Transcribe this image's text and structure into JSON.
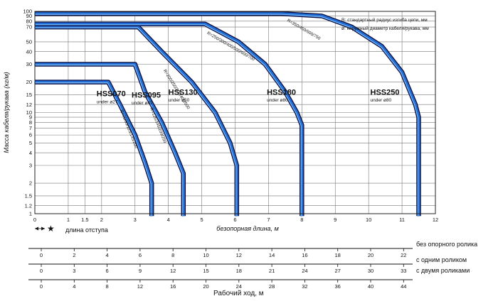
{
  "chart_data": {
    "type": "line",
    "xlabel": "безопорная длина, м",
    "ylabel": "Масса кабеля/рукава (кг/м)",
    "x_scale": "linear",
    "y_scale": "log",
    "xlim": [
      0,
      12
    ],
    "ylim": [
      1,
      100
    ],
    "x_ticks": [
      "0",
      "1",
      "1.5",
      "2",
      "3",
      "4",
      "5",
      "6",
      "7",
      "8",
      "9",
      "10",
      "11",
      "12"
    ],
    "x_tick_values": [
      0,
      1,
      1.5,
      2,
      3,
      4,
      5,
      6,
      7,
      8,
      9,
      10,
      11,
      12
    ],
    "y_ticks": [
      "1",
      "1.2",
      "1.5",
      "2",
      "3",
      "4",
      "5",
      "6",
      "7",
      "8",
      "9",
      "10",
      "12",
      "15",
      "20",
      "30",
      "40",
      "50",
      "70",
      "80",
      "90",
      "100"
    ],
    "y_tick_values": [
      1,
      1.2,
      1.5,
      2,
      3,
      4,
      5,
      6,
      7,
      8,
      9,
      10,
      12,
      15,
      20,
      30,
      40,
      50,
      70,
      80,
      90,
      100
    ],
    "grid": true,
    "series": [
      {
        "name": "HSS070",
        "sub": "under ø27",
        "radius": "R=75/95/125/145/200",
        "points": [
          [
            0,
            20
          ],
          [
            2.2,
            20
          ],
          [
            2.55,
            12
          ],
          [
            3.0,
            6
          ],
          [
            3.3,
            3.2
          ],
          [
            3.5,
            2
          ],
          [
            3.5,
            0.95
          ]
        ],
        "name_at": [
          1.85,
          14.5
        ],
        "sub_at": [
          1.85,
          12.3
        ],
        "radius_at": [
          2.55,
          10.5,
          68
        ]
      },
      {
        "name": "HSS095",
        "sub": "under ø42",
        "radius": "R=125/145/200/250",
        "points": [
          [
            0,
            30
          ],
          [
            3.0,
            30
          ],
          [
            3.3,
            16
          ],
          [
            3.8,
            8
          ],
          [
            4.2,
            4
          ],
          [
            4.45,
            2.5
          ],
          [
            4.45,
            0.95
          ]
        ],
        "name_at": [
          2.9,
          14
        ],
        "sub_at": [
          2.9,
          12
        ],
        "radius_at": [
          3.45,
          11,
          68
        ]
      },
      {
        "name": "HSS130",
        "sub": "under ø50",
        "radius": "R=200/250/300/400/500",
        "points": [
          [
            0,
            70
          ],
          [
            3.1,
            70
          ],
          [
            3.8,
            40
          ],
          [
            4.7,
            20
          ],
          [
            5.4,
            10
          ],
          [
            5.85,
            5
          ],
          [
            6.05,
            3
          ],
          [
            6.05,
            0.95
          ]
        ],
        "name_at": [
          4.0,
          15
        ],
        "sub_at": [
          4.0,
          12.8
        ],
        "radius_at": [
          3.85,
          26,
          58
        ]
      },
      {
        "name": "HSS180",
        "sub": "under ø80",
        "radius": "R=250/300/400/500/600/700",
        "points": [
          [
            0,
            75
          ],
          [
            5.1,
            75
          ],
          [
            6.1,
            50
          ],
          [
            6.9,
            30
          ],
          [
            7.5,
            16
          ],
          [
            7.85,
            10
          ],
          [
            8.0,
            7.5
          ],
          [
            8.0,
            0.95
          ]
        ],
        "name_at": [
          6.95,
          15
        ],
        "sub_at": [
          6.95,
          12.8
        ],
        "radius_at": [
          5.15,
          60,
          30
        ]
      },
      {
        "name": "HSS250",
        "sub": "under ø80",
        "radius": "R=350/450/600/750",
        "points": [
          [
            0,
            95
          ],
          [
            7.4,
            95
          ],
          [
            8.6,
            90
          ],
          [
            9.5,
            70
          ],
          [
            10.4,
            45
          ],
          [
            11.0,
            25
          ],
          [
            11.4,
            12
          ],
          [
            11.5,
            9
          ],
          [
            11.5,
            0.95
          ]
        ],
        "name_at": [
          10.05,
          15
        ],
        "sub_at": [
          10.05,
          12.8
        ],
        "radius_at": [
          7.55,
          80,
          30
        ]
      }
    ],
    "legend": {
      "placement": "top-right",
      "items": [
        "R: стандартный радиус изгиба цепи, мм",
        "ø: наружный диаметр кабеля/рукава, мм"
      ]
    },
    "annotations": {
      "approach_length": "длина отступа"
    },
    "bottom_scales": {
      "scales": [
        {
          "label": "без опорного ролика",
          "ticks": [
            "0",
            "2",
            "4",
            "6",
            "8",
            "10",
            "12",
            "14",
            "16",
            "18",
            "20",
            "22"
          ]
        },
        {
          "label": "с одним роликом",
          "ticks": [
            "0",
            "3",
            "6",
            "9",
            "12",
            "15",
            "18",
            "21",
            "24",
            "27",
            "30",
            "33"
          ]
        },
        {
          "label": "с двумя роликами",
          "ticks": [
            "0",
            "4",
            "8",
            "12",
            "16",
            "20",
            "24",
            "28",
            "32",
            "36",
            "40",
            "44"
          ]
        }
      ],
      "title": "Рабочий ход, м"
    }
  }
}
